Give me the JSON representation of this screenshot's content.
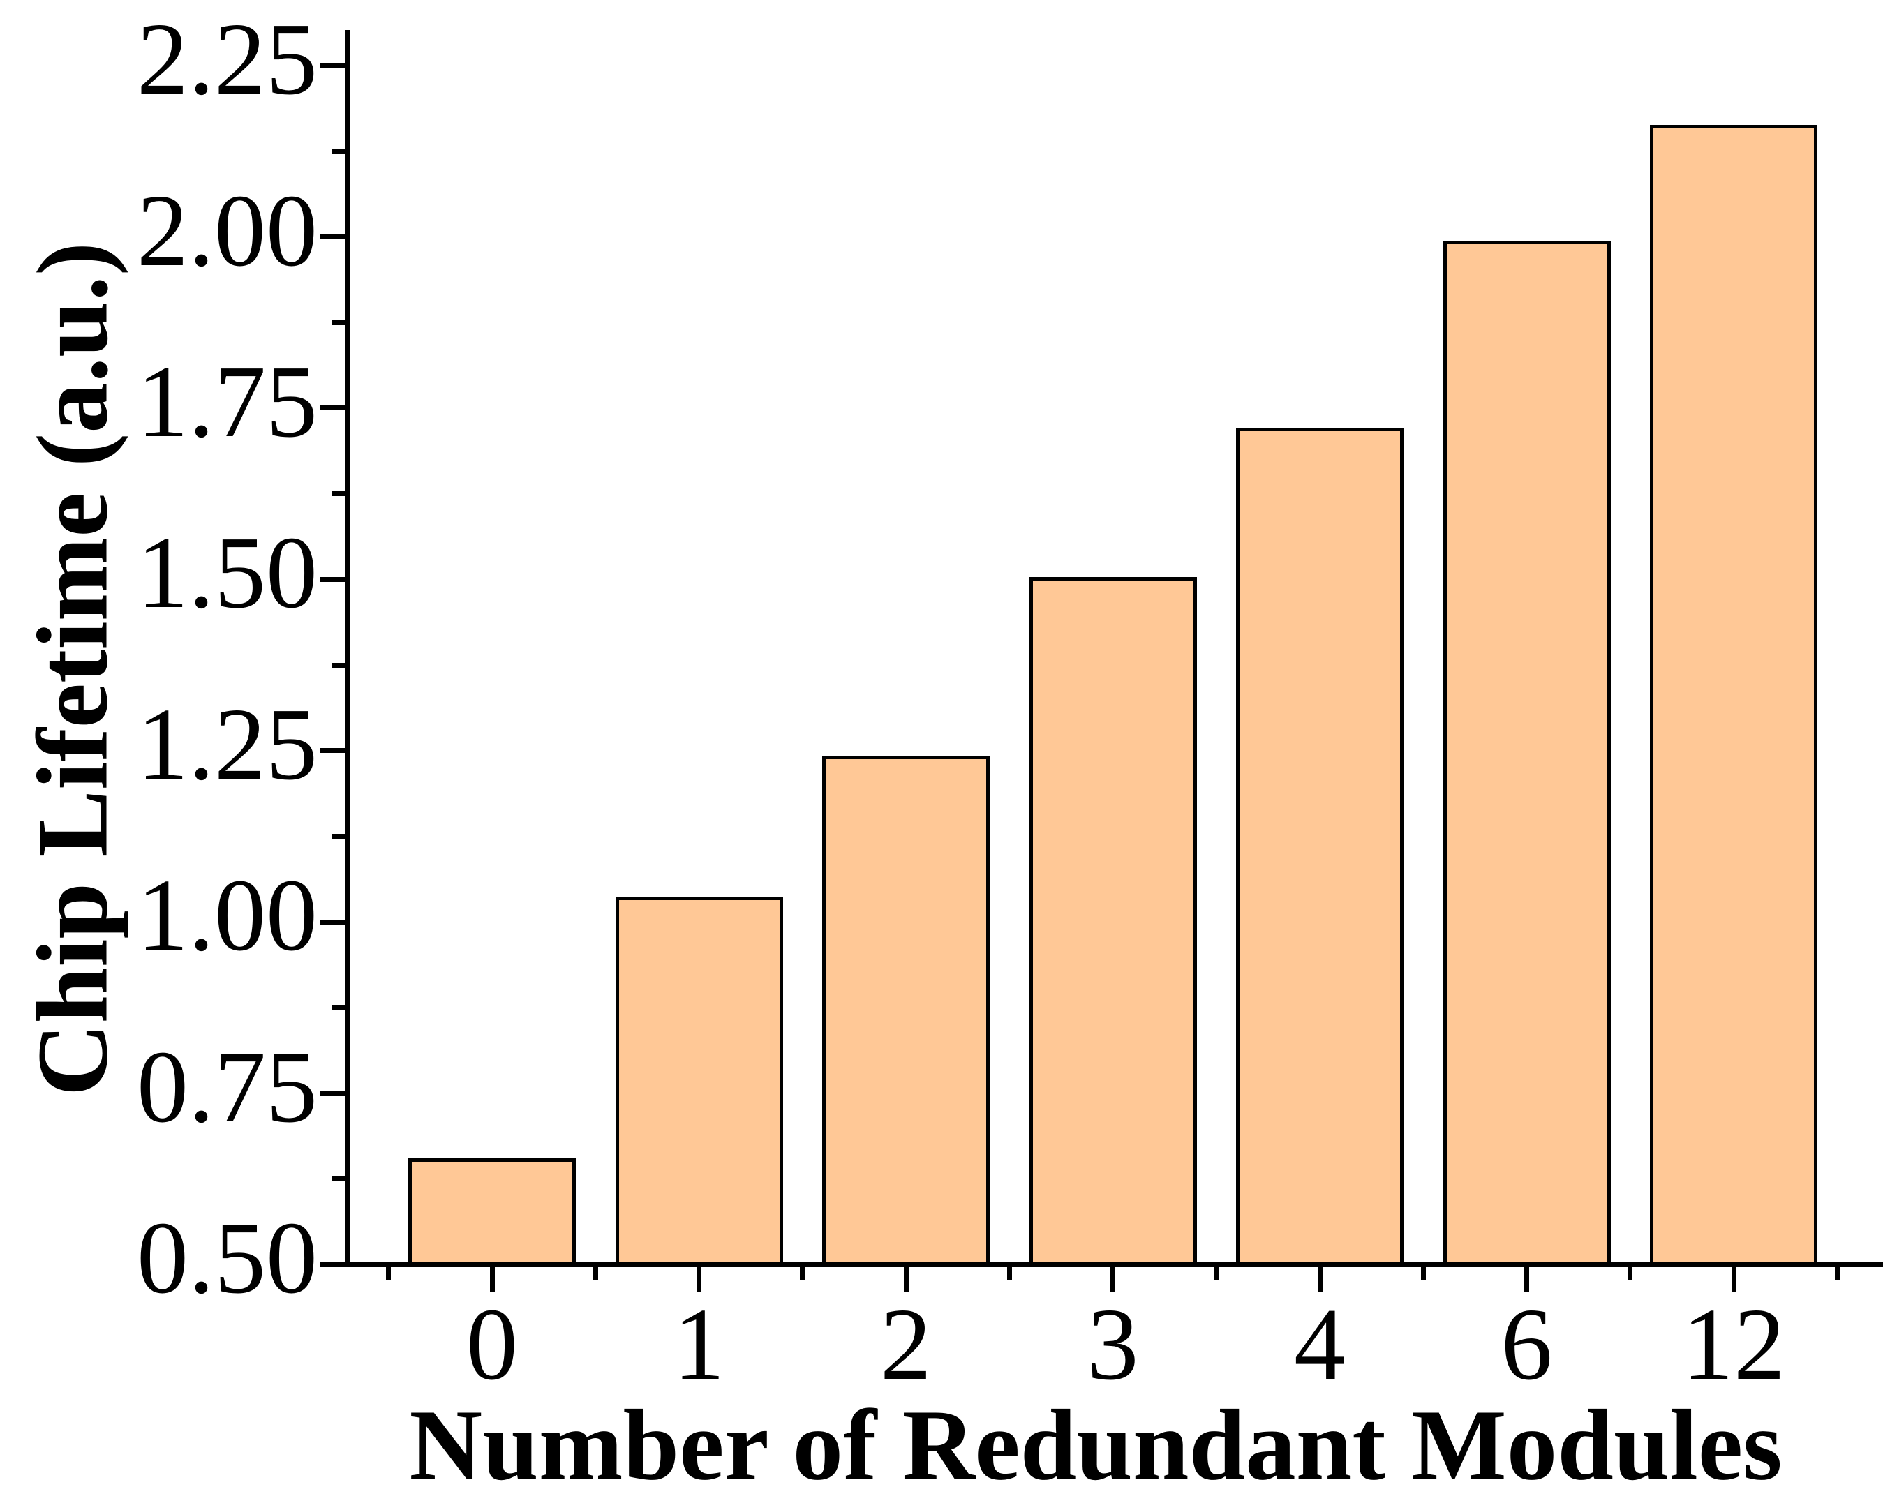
{
  "chart_data": {
    "type": "bar",
    "title": "",
    "xlabel": "Number of Redundant Modules",
    "ylabel": "Chip Lifetime (a.u.)",
    "categories": [
      "0",
      "1",
      "2",
      "3",
      "4",
      "6",
      "12"
    ],
    "values": [
      0.655,
      1.037,
      1.243,
      1.503,
      1.721,
      1.994,
      2.163
    ],
    "series": [
      {
        "name": "Chip Lifetime",
        "values": [
          0.655,
          1.037,
          1.243,
          1.503,
          1.721,
          1.994,
          2.163
        ]
      }
    ],
    "ylim": [
      0.5,
      2.302
    ],
    "yticks": [
      0.5,
      0.75,
      1.0,
      1.25,
      1.5,
      1.75,
      2.0,
      2.25
    ],
    "ytick_labels": [
      "0.50",
      "0.75",
      "1.00",
      "1.25",
      "1.50",
      "1.75",
      "2.00",
      "2.25"
    ],
    "yminor_step": 0.125,
    "xminor_ticks_between_categories": true,
    "grid": false,
    "legend_position": "none",
    "bar_fill_color": "#FFC896",
    "bar_border_color": "#000000",
    "axis_color": "#000000",
    "text_color": "#000000",
    "background_color": "#FFFFFF"
  }
}
